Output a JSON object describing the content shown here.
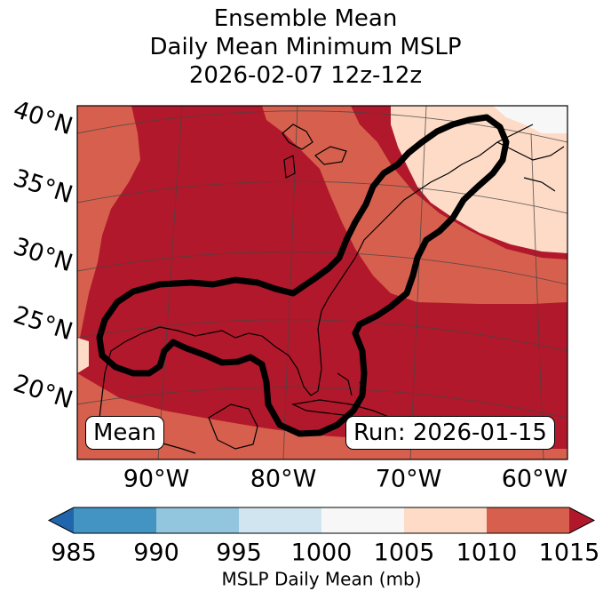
{
  "title": {
    "line1": "Ensemble Mean",
    "line2": "Daily Mean Minimum MSLP",
    "line3": "2026-02-07 12z-12z"
  },
  "map": {
    "projection": "lambert-conformal",
    "lat_labels": [
      "40°N",
      "35°N",
      "30°N",
      "25°N",
      "20°N"
    ],
    "lon_labels": [
      "90°W",
      "80°W",
      "70°W",
      "60°W"
    ],
    "mean_label": "Mean",
    "run_label": "Run: 2026-01-15",
    "contour_color": "#000000",
    "land_outline_color": "#000000"
  },
  "colorbar": {
    "ticks": [
      "985",
      "990",
      "995",
      "1000",
      "1005",
      "1010",
      "1015"
    ],
    "label": "MSLP Daily Mean (mb)",
    "extend": "both",
    "bins": [
      {
        "range": "<985",
        "color": "#2166ac"
      },
      {
        "range": "985-990",
        "color": "#4393c3"
      },
      {
        "range": "990-995",
        "color": "#92c5de"
      },
      {
        "range": "995-1000",
        "color": "#d1e5f0"
      },
      {
        "range": "1000-1005",
        "color": "#f7f7f7"
      },
      {
        "range": "1005-1010",
        "color": "#fddbc7"
      },
      {
        "range": "1010-1015",
        "color": "#d6604d"
      },
      {
        "range": ">1015",
        "color": "#b2182b"
      }
    ]
  }
}
